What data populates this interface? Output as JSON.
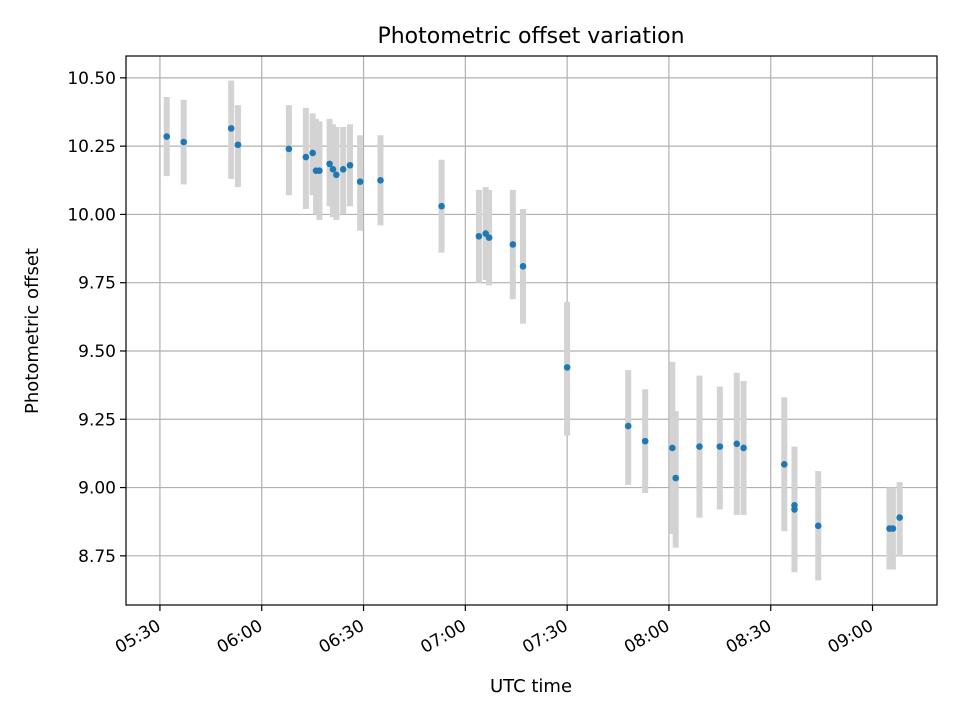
{
  "chart_data": {
    "type": "scatter",
    "title": "Photometric offset variation",
    "xlabel": "UTC time",
    "ylabel": "Photometric offset",
    "x_unit": "UTC time (HH:MM)",
    "xlim": [
      "05:20",
      "09:19"
    ],
    "ylim": [
      8.57,
      10.58
    ],
    "x_ticks": [
      "05:30",
      "06:00",
      "06:30",
      "07:00",
      "07:30",
      "08:00",
      "08:30",
      "09:00"
    ],
    "y_ticks": [
      "8.75",
      "9.00",
      "9.25",
      "9.50",
      "9.75",
      "10.00",
      "10.25",
      "10.50"
    ],
    "grid": true,
    "colors": {
      "point": "#1f77b4",
      "errorbar": "#d3d3d3",
      "grid": "#b0b0b0",
      "axes": "#000000"
    },
    "points": [
      {
        "x": "05:32",
        "y": 10.285,
        "ylow": 10.14,
        "yhigh": 10.43
      },
      {
        "x": "05:37",
        "y": 10.265,
        "ylow": 10.11,
        "yhigh": 10.42
      },
      {
        "x": "05:51",
        "y": 10.315,
        "ylow": 10.13,
        "yhigh": 10.49
      },
      {
        "x": "05:53",
        "y": 10.255,
        "ylow": 10.1,
        "yhigh": 10.4
      },
      {
        "x": "06:08",
        "y": 10.24,
        "ylow": 10.07,
        "yhigh": 10.4
      },
      {
        "x": "06:13",
        "y": 10.21,
        "ylow": 10.02,
        "yhigh": 10.39
      },
      {
        "x": "06:15",
        "y": 10.225,
        "ylow": 10.07,
        "yhigh": 10.37
      },
      {
        "x": "06:16",
        "y": 10.16,
        "ylow": 10.0,
        "yhigh": 10.35
      },
      {
        "x": "06:17",
        "y": 10.16,
        "ylow": 9.98,
        "yhigh": 10.34
      },
      {
        "x": "06:20",
        "y": 10.185,
        "ylow": 10.03,
        "yhigh": 10.35
      },
      {
        "x": "06:21",
        "y": 10.165,
        "ylow": 9.99,
        "yhigh": 10.33
      },
      {
        "x": "06:22",
        "y": 10.145,
        "ylow": 9.98,
        "yhigh": 10.32
      },
      {
        "x": "06:24",
        "y": 10.165,
        "ylow": 10.0,
        "yhigh": 10.32
      },
      {
        "x": "06:26",
        "y": 10.18,
        "ylow": 10.03,
        "yhigh": 10.33
      },
      {
        "x": "06:29",
        "y": 10.12,
        "ylow": 9.94,
        "yhigh": 10.29
      },
      {
        "x": "06:35",
        "y": 10.125,
        "ylow": 9.96,
        "yhigh": 10.29
      },
      {
        "x": "06:53",
        "y": 10.03,
        "ylow": 9.86,
        "yhigh": 10.2
      },
      {
        "x": "07:04",
        "y": 9.92,
        "ylow": 9.75,
        "yhigh": 10.09
      },
      {
        "x": "07:06",
        "y": 9.93,
        "ylow": 9.76,
        "yhigh": 10.1
      },
      {
        "x": "07:07",
        "y": 9.915,
        "ylow": 9.74,
        "yhigh": 10.09
      },
      {
        "x": "07:14",
        "y": 9.89,
        "ylow": 9.69,
        "yhigh": 10.09
      },
      {
        "x": "07:17",
        "y": 9.81,
        "ylow": 9.6,
        "yhigh": 10.02
      },
      {
        "x": "07:30",
        "y": 9.44,
        "ylow": 9.19,
        "yhigh": 9.68
      },
      {
        "x": "07:48",
        "y": 9.225,
        "ylow": 9.01,
        "yhigh": 9.43
      },
      {
        "x": "07:53",
        "y": 9.17,
        "ylow": 8.98,
        "yhigh": 9.36
      },
      {
        "x": "08:01",
        "y": 9.145,
        "ylow": 8.83,
        "yhigh": 9.46
      },
      {
        "x": "08:02",
        "y": 9.035,
        "ylow": 8.78,
        "yhigh": 9.28
      },
      {
        "x": "08:09",
        "y": 9.15,
        "ylow": 8.89,
        "yhigh": 9.41
      },
      {
        "x": "08:15",
        "y": 9.15,
        "ylow": 8.92,
        "yhigh": 9.37
      },
      {
        "x": "08:20",
        "y": 9.16,
        "ylow": 8.9,
        "yhigh": 9.42
      },
      {
        "x": "08:22",
        "y": 9.145,
        "ylow": 8.9,
        "yhigh": 9.39
      },
      {
        "x": "08:34",
        "y": 9.085,
        "ylow": 8.84,
        "yhigh": 9.33
      },
      {
        "x": "08:37",
        "y": 8.935,
        "ylow": 8.69,
        "yhigh": 9.15
      },
      {
        "x": "08:37",
        "y": 8.92,
        "ylow": 8.7,
        "yhigh": 9.14
      },
      {
        "x": "08:44",
        "y": 8.86,
        "ylow": 8.66,
        "yhigh": 9.06
      },
      {
        "x": "09:05",
        "y": 8.85,
        "ylow": 8.7,
        "yhigh": 9.0
      },
      {
        "x": "09:06",
        "y": 8.85,
        "ylow": 8.7,
        "yhigh": 9.0
      },
      {
        "x": "09:08",
        "y": 8.89,
        "ylow": 8.75,
        "yhigh": 9.02
      }
    ]
  }
}
